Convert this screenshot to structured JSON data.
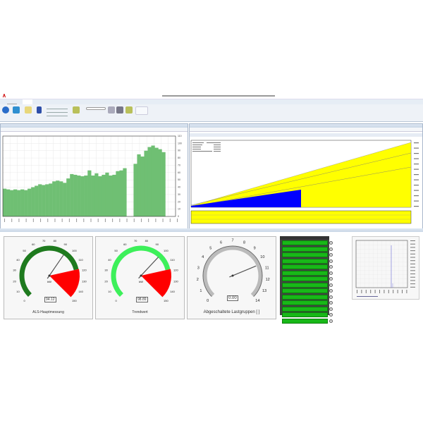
{
  "colors": {
    "accent": "#c00000",
    "bar": "#6fbf73",
    "gauge1_arc": "#1e7a1e",
    "gauge2_arc": "#3df05a",
    "danger": "#ff0000",
    "yellow": "#ffff00",
    "blue": "#0000ff",
    "list_green": "#18b818"
  },
  "bar_chart": {
    "type": "bar",
    "ylim": [
      0,
      110
    ],
    "yticks": [
      0,
      10,
      20,
      30,
      40,
      50,
      60,
      70,
      80,
      90,
      100,
      110
    ],
    "values": [
      38,
      37,
      36,
      37,
      36,
      37,
      36,
      38,
      40,
      42,
      44,
      43,
      44,
      45,
      48,
      49,
      48,
      46,
      52,
      58,
      57,
      56,
      55,
      56,
      63,
      56,
      59,
      55,
      57,
      60,
      56,
      57,
      62,
      63,
      66,
      null,
      null,
      72,
      85,
      82,
      90,
      95,
      97,
      94,
      92,
      88
    ]
  },
  "gauges": [
    {
      "label": "ALS-Hauptmessung",
      "unit": "kW",
      "value": 94.12,
      "display": "94.12",
      "min": 0,
      "max": 150,
      "ticks": [
        0,
        10,
        20,
        30,
        40,
        50,
        60,
        70,
        80,
        90,
        100,
        110,
        120,
        130,
        140,
        150
      ],
      "arc_color": "#1e7a1e",
      "red_from": 118,
      "red_to": 150
    },
    {
      "label": "Trendwert",
      "unit": "kW",
      "value": 98.89,
      "display": "98.89",
      "min": 0,
      "max": 150,
      "ticks": [
        0,
        10,
        20,
        30,
        40,
        50,
        60,
        70,
        80,
        90,
        100,
        110,
        120,
        130,
        140,
        150
      ],
      "arc_color": "#3df05a",
      "red_from": 118,
      "red_to": 150
    },
    {
      "label": "Abgeschaltete Lastgruppen   [ ]",
      "unit": "",
      "value": 0.0,
      "display": "0.00",
      "min": 0,
      "max": 14,
      "ticks": [
        0,
        1,
        2,
        3,
        4,
        5,
        6,
        7,
        8,
        9,
        10,
        11,
        12,
        13,
        14
      ],
      "arc_color": "#bbbbbb"
    }
  ],
  "load_groups_count": 14
}
